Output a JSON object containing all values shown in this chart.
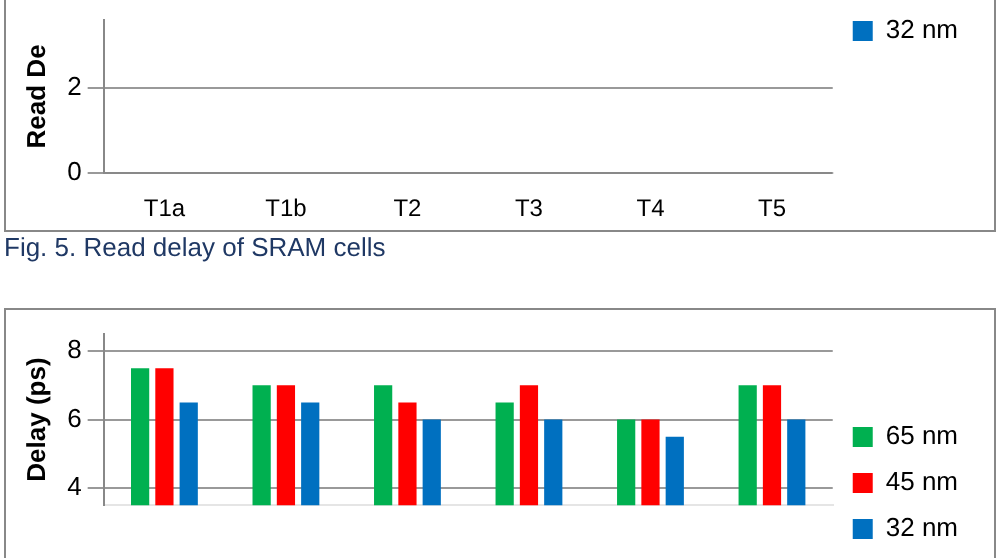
{
  "chart_data": [
    {
      "type": "bar",
      "ylabel": "Read De",
      "categories": [
        "T1a",
        "T1b",
        "T2",
        "T3",
        "T4",
        "T5"
      ],
      "series": [
        {
          "color": "#00b050",
          "values": [
            null,
            null,
            null,
            null,
            null,
            null
          ]
        },
        {
          "color": "#ff0000",
          "values": [
            null,
            null,
            null,
            null,
            null,
            null
          ]
        },
        {
          "name": "32 nm",
          "color": "#0070c0",
          "values": [
            null,
            null,
            null,
            null,
            null,
            null
          ]
        }
      ],
      "ylim": [
        0,
        3.6
      ],
      "yticks": [
        0,
        2
      ],
      "grid": "y",
      "legend": "right",
      "annotations": [
        "Fig. 5. Read delay of SRAM cells"
      ]
    },
    {
      "type": "bar",
      "ylabel": "Delay (ps)",
      "categories": [
        null,
        null,
        null,
        null,
        null,
        null
      ],
      "series": [
        {
          "name": "65 nm",
          "color": "#00b050",
          "values": [
            7.5,
            7.0,
            7.0,
            6.5,
            6.0,
            7.0
          ]
        },
        {
          "name": "45 nm",
          "color": "#ff0000",
          "values": [
            7.5,
            7.0,
            6.5,
            7.0,
            6.0,
            7.0
          ]
        },
        {
          "name": "32 nm",
          "color": "#0070c0",
          "values": [
            6.5,
            6.5,
            6.0,
            6.0,
            5.5,
            6.0
          ]
        }
      ],
      "ylim": [
        3.5,
        8.5
      ],
      "yticks": [
        4,
        6,
        8
      ],
      "grid": "y",
      "legend": "right"
    }
  ]
}
